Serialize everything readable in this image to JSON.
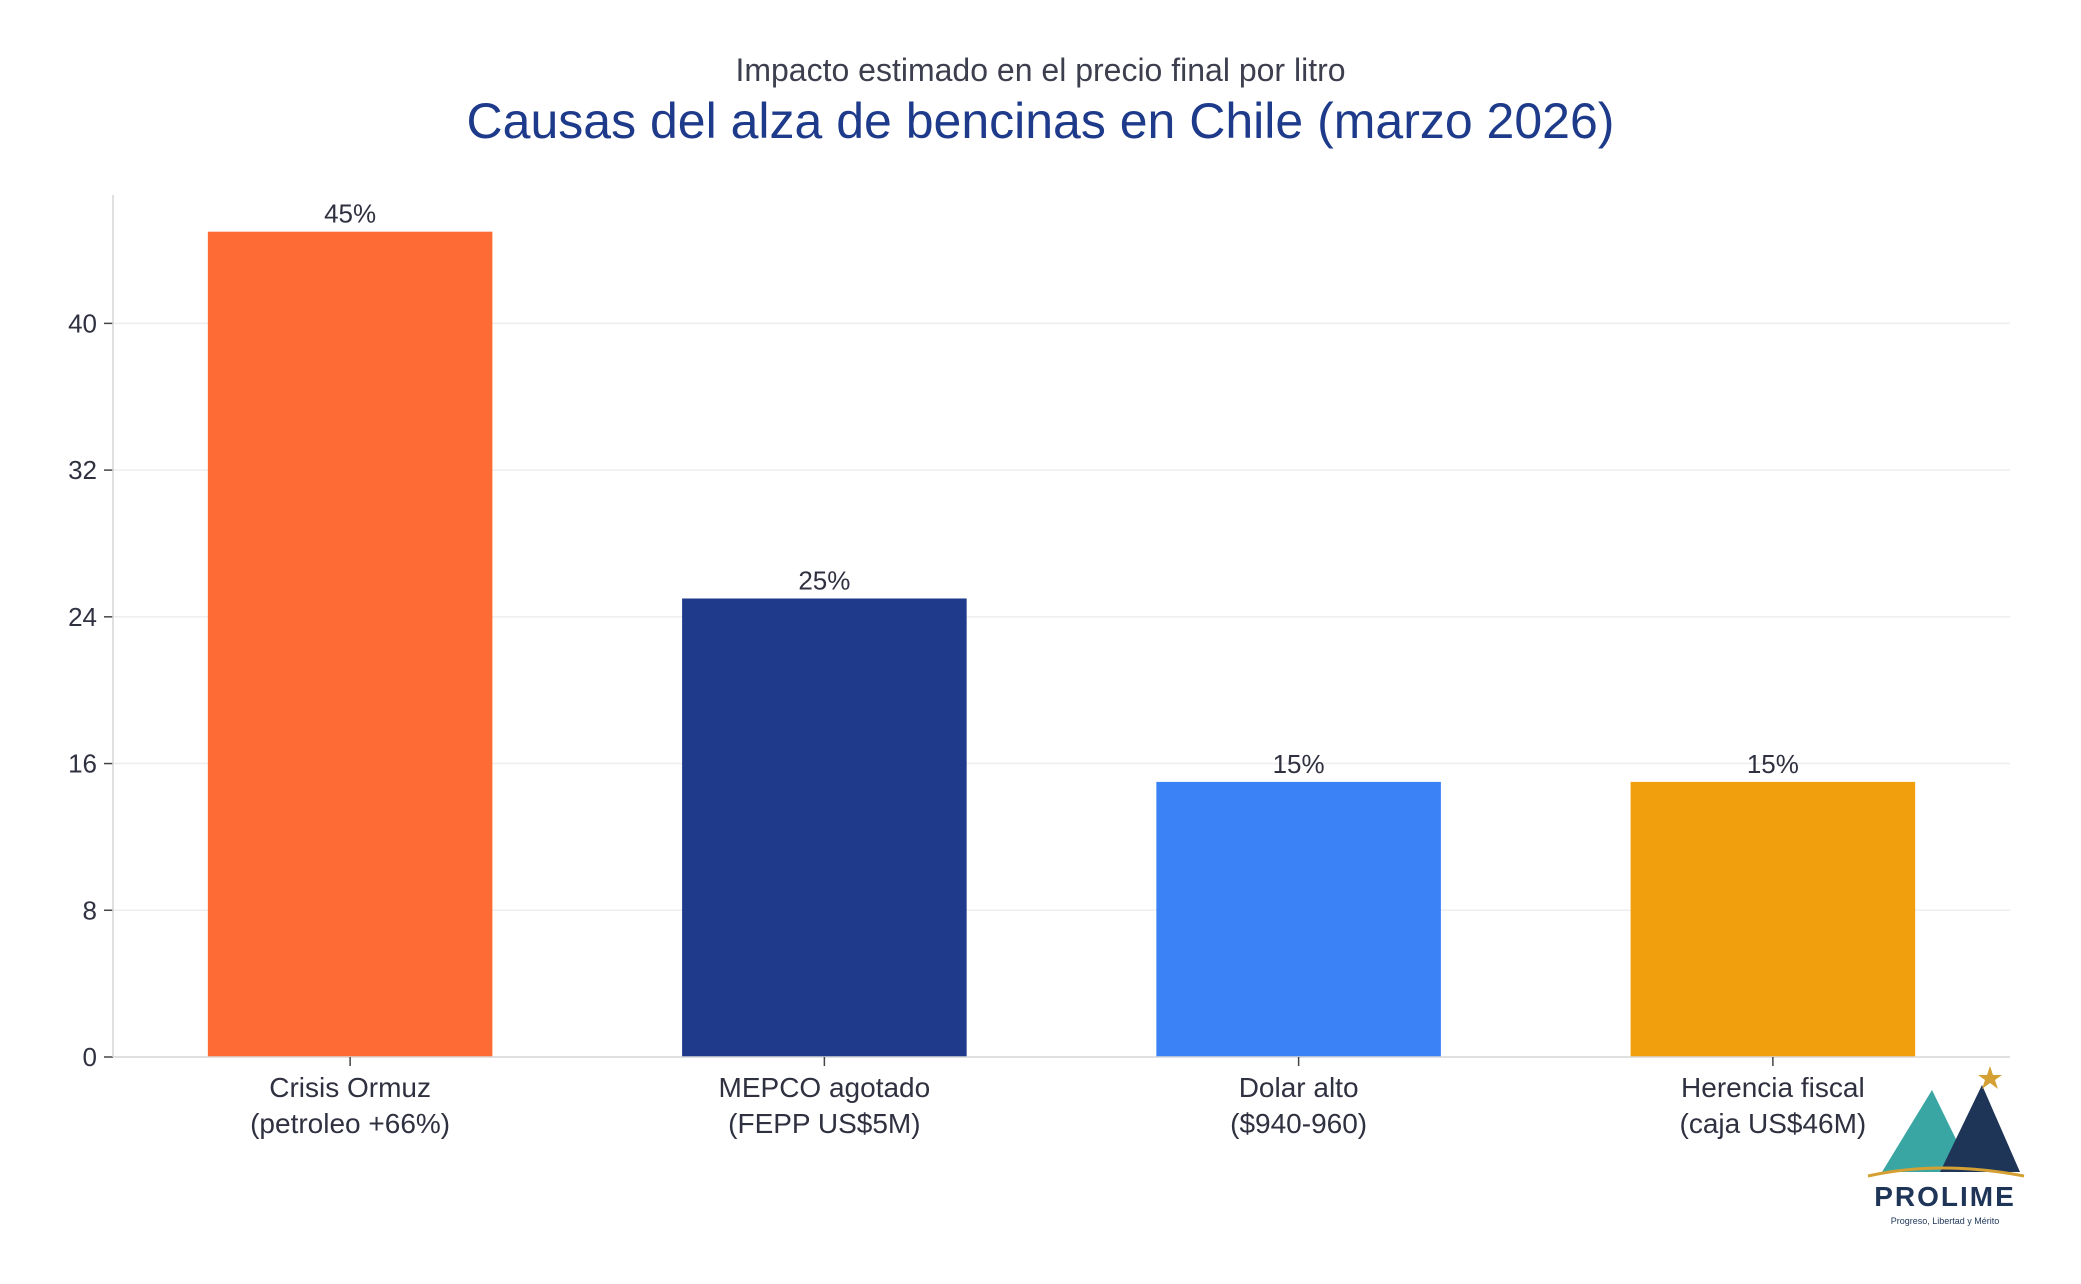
{
  "chart_data": {
    "type": "bar",
    "subtitle": "Impacto estimado en el precio final por litro",
    "title": "Causas del alza de bencinas en Chile (marzo 2026)",
    "categories": [
      [
        "Crisis Ormuz",
        "(petroleo +66%)"
      ],
      [
        "MEPCO agotado",
        "(FEPP US$5M)"
      ],
      [
        "Dolar alto",
        "($940-960)"
      ],
      [
        "Herencia fiscal",
        "(caja US$46M)"
      ]
    ],
    "values": [
      45,
      25,
      15,
      15
    ],
    "data_labels": [
      "45%",
      "25%",
      "15%",
      "15%"
    ],
    "colors": [
      "#ff6b35",
      "#1f3a8a",
      "#3b82f6",
      "#f29f0d"
    ],
    "ylim": [
      0,
      47
    ],
    "yticks": [
      0,
      8,
      16,
      24,
      32,
      40
    ],
    "xlabel": "",
    "ylabel": "",
    "grid": true,
    "legend": "none"
  },
  "logo": {
    "name": "PROLIME",
    "tagline": "Progreso, Libertad y Mérito"
  }
}
